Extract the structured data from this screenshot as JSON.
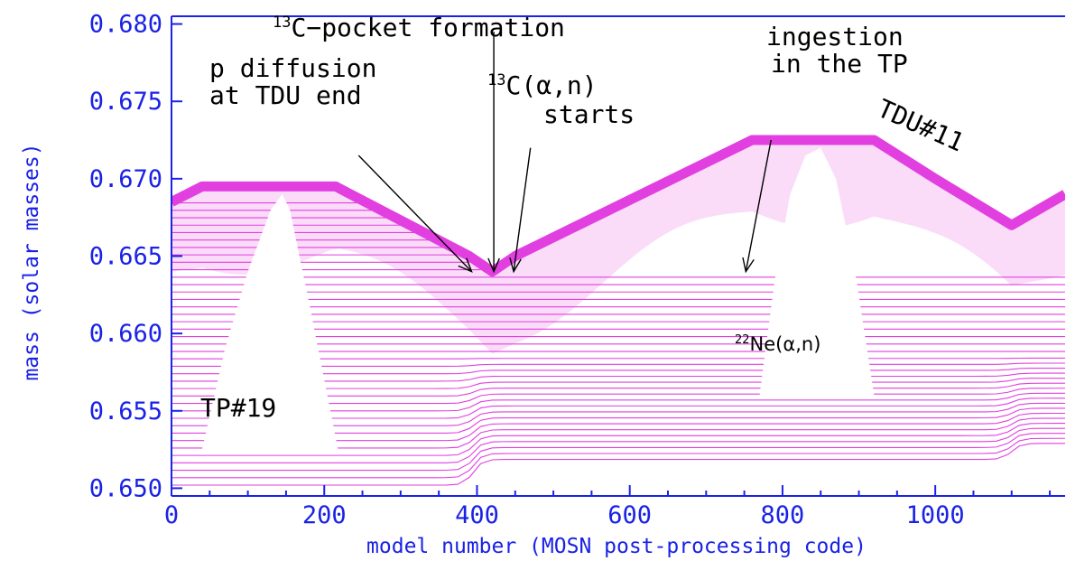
{
  "chart_data": {
    "type": "line",
    "title": "",
    "xlabel": "model number (MOSN post-processing code)",
    "ylabel": "mass (solar masses)",
    "xlim": [
      0,
      1170
    ],
    "ylim": [
      0.6495,
      0.6805
    ],
    "x_ticks": [
      0,
      200,
      400,
      600,
      800,
      1000
    ],
    "x_tick_labels": [
      "0",
      "200",
      "400",
      "600",
      "800",
      "1000"
    ],
    "y_ticks": [
      0.65,
      0.655,
      0.66,
      0.665,
      0.67,
      0.675,
      0.68
    ],
    "y_tick_labels": [
      "0.650",
      "0.655",
      "0.660",
      "0.665",
      "0.670",
      "0.675",
      "0.680"
    ],
    "line_color": "#e23fe0",
    "axis_color": "#1a22e6",
    "grid": false,
    "hydrogen_boundary": {
      "x": [
        0,
        40,
        215,
        390,
        420,
        450,
        760,
        920,
        1000,
        1100,
        1170
      ],
      "y": [
        0.6685,
        0.6695,
        0.6695,
        0.665,
        0.664,
        0.665,
        0.6725,
        0.6725,
        0.67,
        0.667,
        0.669
      ]
    },
    "convective_zones": [
      {
        "label": "TP#19",
        "x": [
          40,
          70,
          100,
          130,
          145,
          155,
          180,
          200,
          218
        ],
        "y": [
          0.6525,
          0.659,
          0.664,
          0.668,
          0.669,
          0.668,
          0.662,
          0.657,
          0.6525
        ]
      },
      {
        "label": "22Ne(α,n)",
        "x": [
          770,
          790,
          810,
          830,
          850,
          870,
          895,
          920
        ],
        "y": [
          0.656,
          0.6635,
          0.669,
          0.6715,
          0.672,
          0.67,
          0.664,
          0.656
        ]
      }
    ],
    "annotations": [
      {
        "text": "13C-pocket formation",
        "superscript": "13",
        "tail": [
          422,
          0.6795
        ],
        "head": [
          422,
          0.664
        ]
      },
      {
        "text": "p diffusion",
        "tail": [
          245,
          0.6715
        ],
        "head": [
          393,
          0.664
        ]
      },
      {
        "text": "at TDU end"
      },
      {
        "text": "13C(α,n)",
        "superscript": "13",
        "tail": [
          470,
          0.672
        ],
        "head": [
          448,
          0.664
        ]
      },
      {
        "text": "starts"
      },
      {
        "text": "ingestion",
        "tail": [
          785,
          0.6725
        ],
        "head": [
          752,
          0.664
        ]
      },
      {
        "text": "in the TP"
      },
      {
        "text": "TDU#11"
      },
      {
        "text": "TP#19"
      },
      {
        "text": "22Ne(α,n)",
        "superscript": "22"
      }
    ]
  },
  "labels": {
    "pocket_sup": "13",
    "pocket_rest": "C−pocket formation",
    "p_diff_1": "p diffusion",
    "p_diff_2": "at TDU end",
    "can_sup": "13",
    "can_rest": "C(α,n)",
    "can_2": "starts",
    "ingest_1": "ingestion",
    "ingest_2": "in the TP",
    "tdu": "TDU#11",
    "tp": "TP#19",
    "ne_sup": "22",
    "ne_rest": "Ne(α,n)"
  }
}
